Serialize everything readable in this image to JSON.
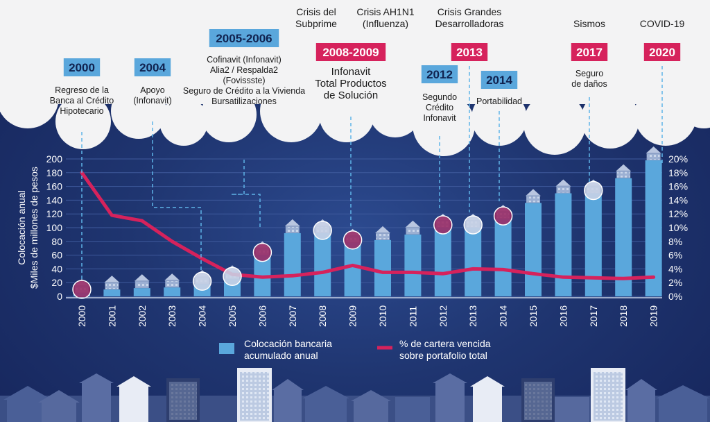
{
  "chart_data": {
    "type": "bar",
    "categories": [
      "2000",
      "2001",
      "2002",
      "2003",
      "2004",
      "2005",
      "2006",
      "2007",
      "2008",
      "2009",
      "2010",
      "2011",
      "2012",
      "2013",
      "2014",
      "2015",
      "2016",
      "2017",
      "2018",
      "2019"
    ],
    "series": [
      {
        "name": "Colocación bancaria acumulado anual",
        "kind": "bar",
        "values": [
          5,
          10,
          12,
          13,
          18,
          25,
          60,
          92,
          92,
          78,
          82,
          90,
          100,
          100,
          113,
          136,
          150,
          150,
          172,
          198
        ]
      },
      {
        "name": "% de cartera vencida sobre portafolio total",
        "kind": "line",
        "values": [
          18.0,
          11.8,
          11.0,
          8.0,
          5.5,
          3.2,
          2.8,
          3.0,
          3.5,
          4.5,
          3.5,
          3.5,
          3.3,
          4.0,
          3.9,
          3.3,
          2.8,
          2.7,
          2.6,
          2.8
        ]
      }
    ],
    "left_axis": {
      "label_line1": "Colocación anual",
      "label_line2": "$Miles de millones de pesos",
      "ylim": [
        0,
        200
      ],
      "ticks": [
        "0",
        "20",
        "40",
        "60",
        "80",
        "100",
        "120",
        "140",
        "160",
        "180",
        "200"
      ]
    },
    "right_axis": {
      "ylim": [
        0,
        20
      ],
      "ticks": [
        "0%",
        "2%",
        "4%",
        "6%",
        "8%",
        "10%",
        "12%",
        "14%",
        "16%",
        "18%",
        "20%"
      ]
    },
    "legend": [
      {
        "label_line1": "Colocación bancaria",
        "label_line2": "acumulado anual",
        "color": "#5aa7dc"
      },
      {
        "label_line1": "% de cartera vencida",
        "label_line2": "sobre portafolio total",
        "color": "#d6225c"
      }
    ],
    "markers": [
      {
        "year": "2000",
        "style": "pink"
      },
      {
        "year": "2004",
        "style": "white"
      },
      {
        "year": "2005",
        "style": "white"
      },
      {
        "year": "2006",
        "style": "pink"
      },
      {
        "year": "2008",
        "style": "white"
      },
      {
        "year": "2009",
        "style": "pink"
      },
      {
        "year": "2012",
        "style": "pink"
      },
      {
        "year": "2013",
        "style": "white"
      },
      {
        "year": "2014",
        "style": "pink"
      },
      {
        "year": "2017",
        "style": "white"
      }
    ],
    "annotations": [
      {
        "badge": "2000",
        "badge_style": "blue",
        "lines": [
          "Regreso de la",
          "Banca al Crédito",
          "Hipotecario"
        ]
      },
      {
        "badge": "2004",
        "badge_style": "blue",
        "lines": [
          "Apoyo",
          "(Infonavit)"
        ]
      },
      {
        "badge": "2005-2006",
        "badge_style": "blue",
        "lines": [
          "Cofinavit (Infonavit)",
          "Alia2 / Respalda2",
          "(Fovissste)",
          "Seguro de Crédito a la Vivienda",
          "Bursatilizaciones"
        ]
      },
      {
        "badge": "2008-2009",
        "badge_style": "pink",
        "above": [
          "Crisis del",
          "Subprime"
        ],
        "above2": [
          "Crisis AH1N1",
          "(Influenza)"
        ],
        "lines": [
          "Infonavit",
          "Total Productos",
          "de Solución"
        ]
      },
      {
        "badge": "2012",
        "badge_style": "blue",
        "lines": [
          "Segundo",
          "Crédito",
          "Infonavit"
        ]
      },
      {
        "badge": "2013",
        "badge_style": "pink",
        "above": [
          "Crisis Grandes",
          "Desarrolladoras"
        ],
        "lines": []
      },
      {
        "badge": "2014",
        "badge_style": "blue",
        "lines": [
          "Portabilidad"
        ]
      },
      {
        "badge": "2017",
        "badge_style": "pink",
        "above": [
          "Sismos"
        ],
        "lines": [
          "Seguro",
          "de daños"
        ]
      },
      {
        "badge": "2020",
        "badge_style": "pink",
        "above": [
          "COVID-19"
        ],
        "lines": []
      }
    ]
  },
  "colors": {
    "bar": "#5aa7dc",
    "line": "#d6225c",
    "badge_blue": "#5aa7dc",
    "badge_pink": "#d6225c",
    "text_light": "#ffffff",
    "text_dark": "#1a1a1a",
    "dash": "#5fb4e8"
  }
}
